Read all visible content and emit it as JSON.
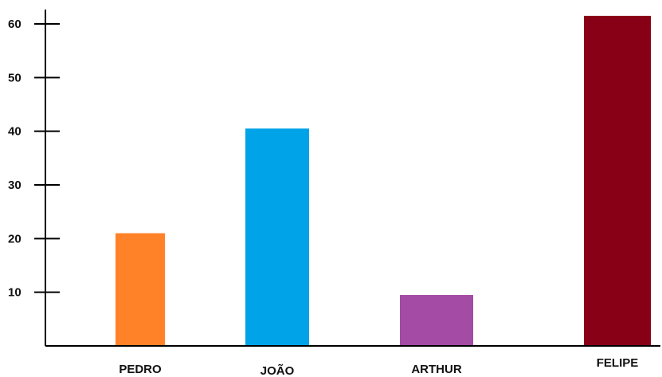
{
  "chart_data": {
    "type": "bar",
    "title": "",
    "xlabel": "",
    "ylabel": "",
    "categories": [
      "PEDRO",
      "JOÃO",
      "ARTHUR",
      "FELIPE"
    ],
    "values": [
      21,
      40.5,
      9.5,
      61.5
    ],
    "colors": [
      "#FF8128",
      "#00A3E8",
      "#A34BA5",
      "#880015"
    ],
    "y_ticks": [
      10,
      20,
      30,
      40,
      50,
      60
    ],
    "y_tick_labels": [
      "10",
      "20",
      "30",
      "40",
      "50",
      "60"
    ],
    "ylim": [
      0,
      64
    ],
    "grid": false,
    "legend": "none"
  }
}
